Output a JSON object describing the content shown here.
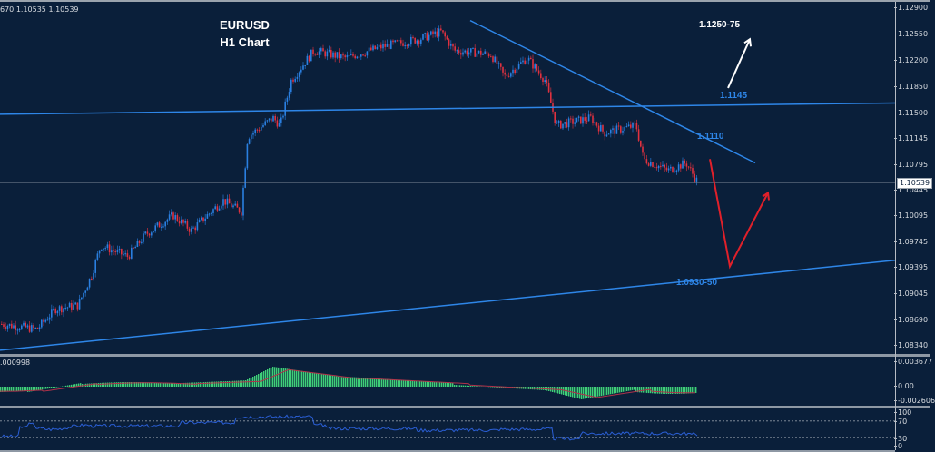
{
  "header": {
    "ohlc_text": "670 1.10535 1.10539",
    "title_line1": "EURUSD",
    "title_line2": "H1 Chart"
  },
  "colors": {
    "background": "#0a1f3a",
    "bull_candle": "#2a7fe0",
    "bear_candle": "#e0313f",
    "trendline": "#2e86e8",
    "macd_hist": "#3fcf78",
    "macd_signal": "#b0324a",
    "rsi_line": "#2b5fd6",
    "arrow_white": "#ffffff",
    "arrow_red": "#e0202a",
    "axis_text": "#d7dbe0"
  },
  "price_axis": {
    "ticks": [
      "1.12900",
      "1.12550",
      "1.12200",
      "1.11850",
      "1.11500",
      "1.11145",
      "1.10795",
      "1.10445",
      "1.10095",
      "1.09745",
      "1.09395",
      "1.09045",
      "1.08690",
      "1.08340"
    ],
    "current_price": "1.10539"
  },
  "annotations": {
    "target_up": "1.1250-75",
    "resistance": "1.1145",
    "trendline_level": "1.1110",
    "support": "1.0930-50"
  },
  "macd_panel": {
    "label": ".000998",
    "ticks": [
      "0.003677",
      "0.00",
      "-0.002606"
    ]
  },
  "rsi_panel": {
    "ticks": [
      "100",
      "70",
      "30",
      "0"
    ]
  },
  "chart_data": {
    "type": "candlestick",
    "title": "EURUSD H1 Chart",
    "symbol": "EURUSD",
    "timeframe": "H1",
    "ylim": [
      1.0825,
      1.1295
    ],
    "price_ticks": [
      1.129,
      1.1255,
      1.122,
      1.1185,
      1.115,
      1.11145,
      1.10795,
      1.10445,
      1.10095,
      1.09745,
      1.09395,
      1.09045,
      1.0869,
      1.0834
    ],
    "current_price": 1.10539,
    "close_path_approx": [
      {
        "x": 0,
        "close": 1.0865
      },
      {
        "x": 40,
        "close": 1.0858
      },
      {
        "x": 60,
        "close": 1.0885
      },
      {
        "x": 85,
        "close": 1.089
      },
      {
        "x": 100,
        "close": 1.093
      },
      {
        "x": 110,
        "close": 1.097
      },
      {
        "x": 140,
        "close": 1.0955
      },
      {
        "x": 160,
        "close": 1.0985
      },
      {
        "x": 190,
        "close": 1.101
      },
      {
        "x": 210,
        "close": 1.099
      },
      {
        "x": 245,
        "close": 1.103
      },
      {
        "x": 265,
        "close": 1.1015
      },
      {
        "x": 272,
        "close": 1.1115
      },
      {
        "x": 300,
        "close": 1.114
      },
      {
        "x": 308,
        "close": 1.113
      },
      {
        "x": 320,
        "close": 1.119
      },
      {
        "x": 345,
        "close": 1.123
      },
      {
        "x": 380,
        "close": 1.122
      },
      {
        "x": 420,
        "close": 1.1235
      },
      {
        "x": 460,
        "close": 1.1245
      },
      {
        "x": 485,
        "close": 1.1255
      },
      {
        "x": 500,
        "close": 1.123
      },
      {
        "x": 540,
        "close": 1.1225
      },
      {
        "x": 555,
        "close": 1.1195
      },
      {
        "x": 580,
        "close": 1.122
      },
      {
        "x": 600,
        "close": 1.119
      },
      {
        "x": 612,
        "close": 1.113
      },
      {
        "x": 650,
        "close": 1.114
      },
      {
        "x": 665,
        "close": 1.112
      },
      {
        "x": 700,
        "close": 1.113
      },
      {
        "x": 708,
        "close": 1.1085
      },
      {
        "x": 735,
        "close": 1.107
      },
      {
        "x": 755,
        "close": 1.108
      },
      {
        "x": 768,
        "close": 1.10539
      }
    ],
    "overlays": [
      {
        "type": "horizontal_trendline",
        "label": "1.1145",
        "from": [
          0,
          1.1145
        ],
        "to": [
          986,
          1.116
        ]
      },
      {
        "type": "descending_trendline",
        "label": "1.1110",
        "from": [
          518,
          1.127
        ],
        "to": [
          832,
          1.108
        ]
      },
      {
        "type": "ascending_trendline",
        "label": "1.0930-50",
        "from": [
          0,
          1.083
        ],
        "to": [
          986,
          1.095
        ]
      },
      {
        "type": "arrow",
        "color": "white",
        "from": [
          802,
          1.118
        ],
        "to": [
          826,
          1.1245
        ],
        "label": "1.1250-75"
      },
      {
        "type": "zigzag_arrow",
        "color": "red",
        "points": [
          [
            782,
            1.1085
          ],
          [
            804,
            1.0942
          ],
          [
            846,
            1.104
          ]
        ]
      }
    ],
    "indicators": [
      {
        "name": "MACD",
        "ticks": [
          0.003677,
          0.0,
          -0.002606
        ],
        "label": ".000998"
      },
      {
        "name": "RSI",
        "levels": [
          70,
          30
        ],
        "ticks": [
          100,
          70,
          30,
          0
        ]
      }
    ],
    "grid": false,
    "legend": "none"
  }
}
